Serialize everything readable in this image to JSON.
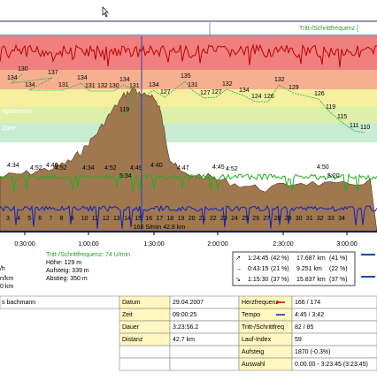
{
  "header": {
    "channel": "Tritt-/Schrittfrequenz ["
  },
  "chart": {
    "zones": [
      "ngsbereich",
      "Zone"
    ],
    "hr_labels": [
      "130",
      "134",
      "137",
      "134",
      "131",
      "134",
      "131",
      "132",
      "130",
      "134",
      "131",
      "119",
      "134",
      "127",
      "135",
      "131",
      "127",
      "127",
      "132",
      "134",
      "124",
      "126",
      "132",
      "129",
      "126",
      "119",
      "115",
      "111",
      "110"
    ],
    "pace_labels": [
      "4:34",
      "4:52",
      "4:40",
      "4:52",
      "4:34",
      "4:52",
      "4:49",
      "5:34",
      "4:40",
      "4:47",
      "4:45",
      "4:52",
      "4:50",
      "5:20"
    ],
    "laps": [
      "3",
      "4",
      "5",
      "6",
      "7",
      "8",
      "9",
      "10",
      "11",
      "12",
      "13",
      "14",
      "15",
      "16",
      "17",
      "18",
      "19",
      "20",
      "21",
      "22",
      "23",
      "24",
      "25",
      "26",
      "27",
      "28",
      "29",
      "30",
      "31",
      "32",
      "33",
      "34"
    ],
    "cursor_label": "166 S/min 42.8 km",
    "x_labels": [
      "0:30:00",
      "1:00:00",
      "1:30:00",
      "2:00:00",
      "2:30:00",
      "3:00:00"
    ]
  },
  "info": {
    "cadence": "Tritt-/Schrittfrequenz: 74 U/min",
    "height": "Höhe: 129 m",
    "ascent": "Aufsteig: 339 m",
    "descent": "Abstieg: 350 m",
    "left": [
      "/h",
      "n/km",
      "0 km"
    ]
  },
  "legend": {
    "rows": [
      [
        "↗",
        "1:24:45",
        "(42 %)",
        "17.687 km",
        "(41 %)"
      ],
      [
        "→",
        "0:43:15",
        "(21 %)",
        "9.251 km",
        "(22 %)"
      ],
      [
        "↘",
        "1:15:30",
        "(37 %)",
        "15.837 km",
        "(37 %)"
      ]
    ]
  },
  "table": {
    "athlete": "s bachmann",
    "rows": [
      [
        "Datum",
        "29.04.2007",
        "Herzfrequenz",
        "166 / 174"
      ],
      [
        "Zeit",
        "09:00:25",
        "Tempo",
        "4:45 / 3:42"
      ],
      [
        "Dauer",
        "3:23:56.2",
        "Tritt-/Schrittfreq",
        "82 / 85"
      ],
      [
        "Distanz",
        "42.7 km",
        "Lauf-Index",
        "59"
      ],
      [
        "",
        "",
        "Aufsteig",
        "1870 (-0.3%)"
      ],
      [
        "",
        "",
        "Auswahl",
        "0.00.00 - 3:23:45 (3:23:45)"
      ]
    ]
  }
}
